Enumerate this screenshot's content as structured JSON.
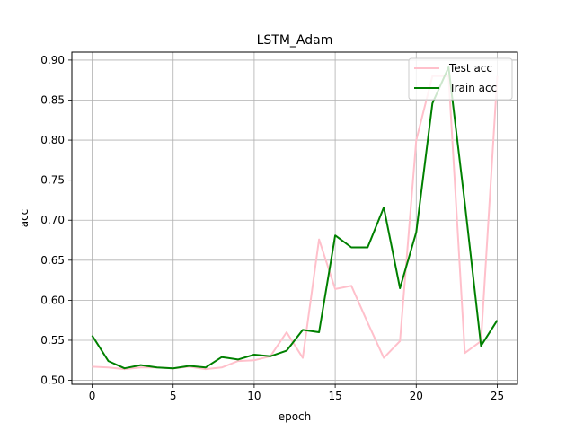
{
  "chart_data": {
    "type": "line",
    "title": "LSTM_Adam",
    "xlabel": "epoch",
    "ylabel": "acc",
    "xlim": [
      -1.25,
      26.25
    ],
    "ylim": [
      0.495,
      0.91
    ],
    "xticks": [
      0,
      5,
      10,
      15,
      20,
      25
    ],
    "xtick_labels": [
      "0",
      "5",
      "10",
      "15",
      "20",
      "25"
    ],
    "yticks": [
      0.5,
      0.55,
      0.6,
      0.65,
      0.7,
      0.75,
      0.8,
      0.85,
      0.9
    ],
    "ytick_labels": [
      "0.50",
      "0.55",
      "0.60",
      "0.65",
      "0.70",
      "0.75",
      "0.80",
      "0.85",
      "0.90"
    ],
    "grid": true,
    "legend_position": "top-right",
    "x": [
      0,
      1,
      2,
      3,
      4,
      5,
      6,
      7,
      8,
      9,
      10,
      11,
      12,
      13,
      14,
      15,
      16,
      17,
      18,
      19,
      20,
      21,
      22,
      23,
      24,
      25
    ],
    "series": [
      {
        "name": "Test acc",
        "color": "#ffc0cb",
        "values": [
          0.517,
          0.516,
          0.514,
          0.516,
          0.516,
          0.515,
          0.517,
          0.514,
          0.516,
          0.524,
          0.525,
          0.53,
          0.56,
          0.528,
          0.676,
          0.614,
          0.618,
          0.572,
          0.528,
          0.549,
          0.8,
          0.88,
          0.88,
          0.534,
          0.549,
          0.88
        ]
      },
      {
        "name": "Train acc",
        "color": "#008000",
        "values": [
          0.556,
          0.524,
          0.515,
          0.519,
          0.516,
          0.515,
          0.518,
          0.516,
          0.529,
          0.526,
          0.532,
          0.53,
          0.537,
          0.563,
          0.56,
          0.681,
          0.666,
          0.666,
          0.716,
          0.615,
          0.685,
          0.846,
          0.891,
          0.721,
          0.543,
          0.575
        ]
      }
    ]
  }
}
